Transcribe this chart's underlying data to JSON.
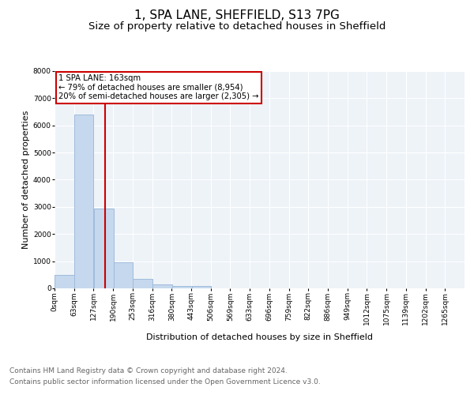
{
  "title": "1, SPA LANE, SHEFFIELD, S13 7PG",
  "subtitle": "Size of property relative to detached houses in Sheffield",
  "xlabel": "Distribution of detached houses by size in Sheffield",
  "ylabel": "Number of detached properties",
  "bar_color": "#c5d8ed",
  "bar_edge_color": "#a0bbdb",
  "background_color": "#eef3f8",
  "grid_color": "#ffffff",
  "bin_width": 63,
  "bins_left": [
    0,
    63,
    127,
    190,
    253,
    316,
    380,
    443,
    506,
    569,
    633,
    696,
    759,
    822,
    886,
    949,
    1012,
    1075,
    1139,
    1202
  ],
  "heights": [
    500,
    6400,
    2930,
    960,
    350,
    140,
    90,
    85,
    10,
    0,
    0,
    0,
    0,
    0,
    0,
    0,
    0,
    0,
    0,
    0
  ],
  "property_size": 163,
  "vline_color": "#cc0000",
  "annotation_text": "1 SPA LANE: 163sqm\n← 79% of detached houses are smaller (8,954)\n20% of semi-detached houses are larger (2,305) →",
  "annotation_box_color": "#cc0000",
  "annotation_text_color": "#000000",
  "ylim": [
    0,
    8000
  ],
  "yticks": [
    0,
    1000,
    2000,
    3000,
    4000,
    5000,
    6000,
    7000,
    8000
  ],
  "x_tick_labels": [
    "0sqm",
    "63sqm",
    "127sqm",
    "190sqm",
    "253sqm",
    "316sqm",
    "380sqm",
    "443sqm",
    "506sqm",
    "569sqm",
    "633sqm",
    "696sqm",
    "759sqm",
    "822sqm",
    "886sqm",
    "949sqm",
    "1012sqm",
    "1075sqm",
    "1139sqm",
    "1202sqm",
    "1265sqm"
  ],
  "footer_line1": "Contains HM Land Registry data © Crown copyright and database right 2024.",
  "footer_line2": "Contains public sector information licensed under the Open Government Licence v3.0.",
  "title_fontsize": 11,
  "subtitle_fontsize": 9.5,
  "axis_label_fontsize": 8,
  "tick_fontsize": 6.5,
  "footer_fontsize": 6.5
}
